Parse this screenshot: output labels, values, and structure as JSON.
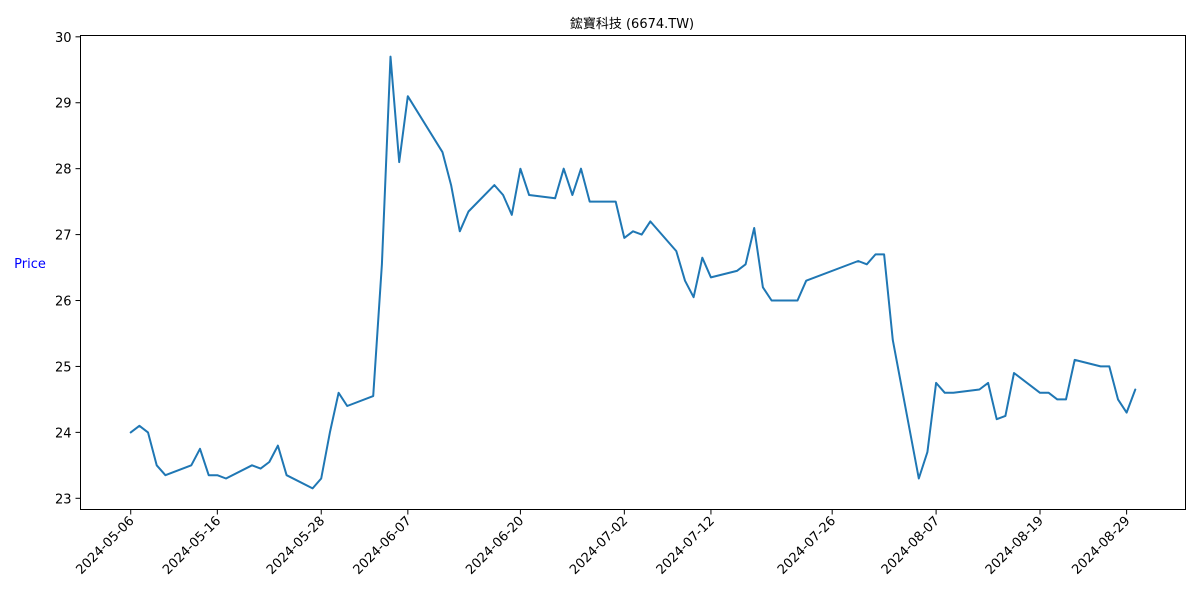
{
  "chart_data": {
    "type": "line",
    "title": "鋐寶科技 (6674.TW)",
    "xlabel": "",
    "ylabel": "Price",
    "ylim": [
      22.83,
      30.02
    ],
    "yticks": [
      23,
      24,
      25,
      26,
      27,
      28,
      29,
      30
    ],
    "xticks": [
      "2024-05-06",
      "2024-05-16",
      "2024-05-28",
      "2024-06-07",
      "2024-06-20",
      "2024-07-02",
      "2024-07-12",
      "2024-07-26",
      "2024-08-07",
      "2024-08-19",
      "2024-08-29"
    ],
    "grid": false,
    "legend": false,
    "colors": {
      "line": "#1f77b4",
      "ylabel": "#0000ff",
      "axis": "#000000"
    },
    "series": [
      {
        "x": [
          "2024-05-06",
          "2024-05-07",
          "2024-05-08",
          "2024-05-09",
          "2024-05-10",
          "2024-05-13",
          "2024-05-14",
          "2024-05-15",
          "2024-05-16",
          "2024-05-17",
          "2024-05-20",
          "2024-05-21",
          "2024-05-22",
          "2024-05-23",
          "2024-05-24",
          "2024-05-27",
          "2024-05-28",
          "2024-05-29",
          "2024-05-30",
          "2024-05-31",
          "2024-06-03",
          "2024-06-04",
          "2024-06-05",
          "2024-06-06",
          "2024-06-07",
          "2024-06-11",
          "2024-06-12",
          "2024-06-13",
          "2024-06-14",
          "2024-06-17",
          "2024-06-18",
          "2024-06-19",
          "2024-06-20",
          "2024-06-21",
          "2024-06-24",
          "2024-06-25",
          "2024-06-26",
          "2024-06-27",
          "2024-06-28",
          "2024-07-01",
          "2024-07-02",
          "2024-07-03",
          "2024-07-04",
          "2024-07-05",
          "2024-07-08",
          "2024-07-09",
          "2024-07-10",
          "2024-07-11",
          "2024-07-12",
          "2024-07-15",
          "2024-07-16",
          "2024-07-17",
          "2024-07-18",
          "2024-07-19",
          "2024-07-22",
          "2024-07-23",
          "2024-07-29",
          "2024-07-30",
          "2024-07-31",
          "2024-08-01",
          "2024-08-02",
          "2024-08-05",
          "2024-08-06",
          "2024-08-07",
          "2024-08-08",
          "2024-08-09",
          "2024-08-12",
          "2024-08-13",
          "2024-08-14",
          "2024-08-15",
          "2024-08-16",
          "2024-08-19",
          "2024-08-20",
          "2024-08-21",
          "2024-08-22",
          "2024-08-23",
          "2024-08-26",
          "2024-08-27",
          "2024-08-28",
          "2024-08-29",
          "2024-08-30"
        ],
        "values": [
          24.0,
          24.1,
          24.0,
          23.5,
          23.35,
          23.5,
          23.75,
          23.35,
          23.35,
          23.3,
          23.5,
          23.45,
          23.55,
          23.8,
          23.35,
          23.15,
          23.3,
          24.0,
          24.6,
          24.4,
          24.55,
          26.55,
          29.7,
          28.1,
          29.1,
          28.25,
          27.75,
          27.05,
          27.35,
          27.75,
          27.6,
          27.3,
          28.0,
          27.6,
          27.55,
          28.0,
          27.6,
          28.0,
          27.5,
          27.5,
          26.95,
          27.05,
          27.0,
          27.2,
          26.75,
          26.3,
          26.05,
          26.65,
          26.35,
          26.45,
          26.55,
          27.1,
          26.2,
          26.0,
          26.0,
          26.3,
          26.6,
          26.55,
          26.7,
          26.7,
          25.4,
          23.3,
          23.7,
          24.75,
          24.6,
          24.6,
          24.65,
          24.75,
          24.2,
          24.25,
          24.9,
          24.6,
          24.6,
          24.5,
          24.5,
          25.1,
          25.0,
          25.0,
          24.5,
          24.3,
          24.65
        ]
      }
    ]
  }
}
